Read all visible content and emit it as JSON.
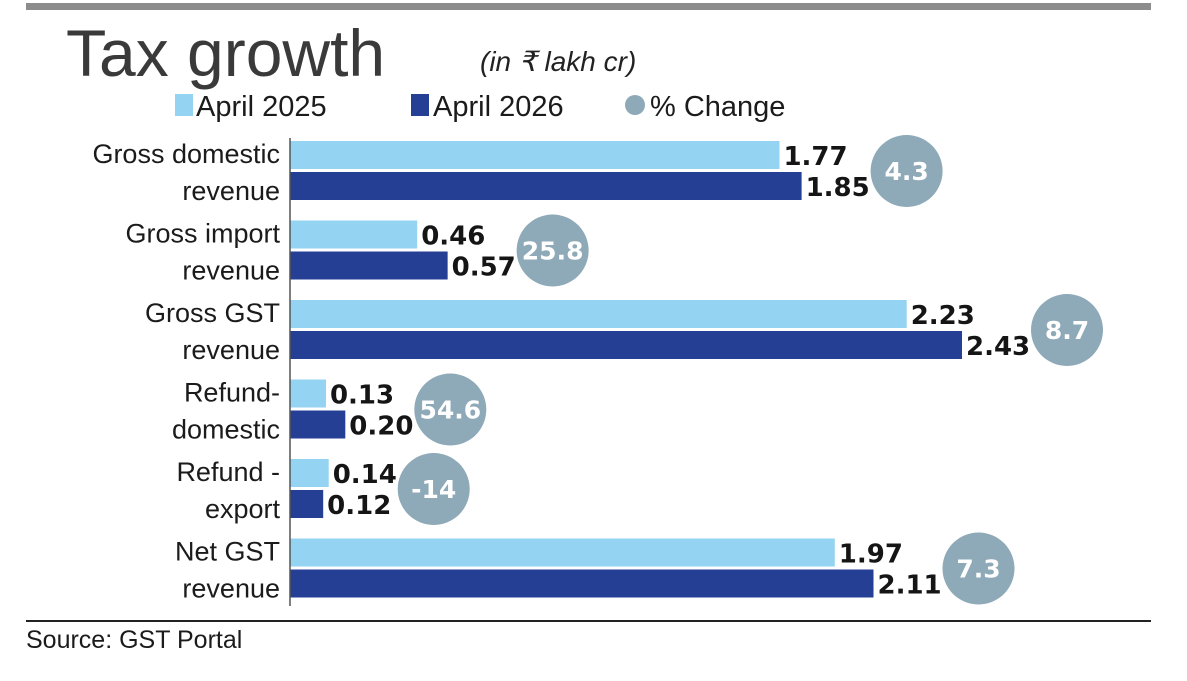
{
  "colors": {
    "april_2025": "#94d3f1",
    "april_2026": "#253f95",
    "pct_change": "#8ea9b8",
    "top_rule": "#8c8c8c"
  },
  "chart_data": {
    "type": "bar",
    "orientation": "horizontal",
    "title": "Tax growth",
    "unit": "(in ₹ lakh cr)",
    "categories": [
      [
        "Gross domestic",
        "revenue"
      ],
      [
        "Gross import",
        "revenue"
      ],
      [
        "Gross GST",
        "revenue"
      ],
      [
        "Refund-",
        "domestic"
      ],
      [
        "Refund -",
        "export"
      ],
      [
        "Net GST",
        "revenue"
      ]
    ],
    "series": [
      {
        "name": "April 2025",
        "values": [
          1.77,
          0.46,
          2.23,
          0.13,
          0.14,
          1.97
        ],
        "labels": [
          "1.77",
          "0.46",
          "2.23",
          "0.13",
          "0.14",
          "1.97"
        ]
      },
      {
        "name": "April 2026",
        "values": [
          1.85,
          0.57,
          2.43,
          0.2,
          0.12,
          2.11
        ],
        "labels": [
          "1.85",
          "0.57",
          "2.43",
          "0.20",
          "0.12",
          "2.11"
        ]
      }
    ],
    "pct_change": {
      "name": "% Change",
      "values": [
        4.3,
        25.8,
        8.7,
        54.6,
        -14,
        7.3
      ],
      "labels": [
        "4.3",
        "25.8",
        "8.7",
        "54.6",
        "-14",
        "7.3"
      ]
    },
    "xlim": [
      0,
      2.6
    ],
    "grid": false,
    "legend_position": "top"
  },
  "source": "Source: GST Portal"
}
